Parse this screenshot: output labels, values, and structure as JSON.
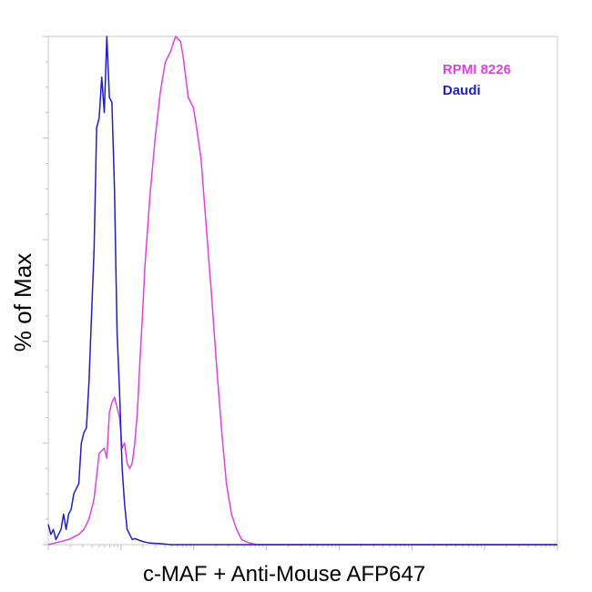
{
  "chart_data": {
    "type": "line",
    "title": "",
    "xlabel": "c-MAF + Anti-Mouse AFP647",
    "ylabel": "% of Max",
    "xlim": [
      0,
      1
    ],
    "ylim": [
      0,
      1
    ],
    "grid": false,
    "legend_position": "top-right",
    "series": [
      {
        "name": "RPMI 8226",
        "color": "#e040e0",
        "x": [
          0.0,
          0.02,
          0.04,
          0.06,
          0.07,
          0.08,
          0.09,
          0.1,
          0.11,
          0.115,
          0.12,
          0.125,
          0.13,
          0.135,
          0.14,
          0.145,
          0.15,
          0.155,
          0.16,
          0.165,
          0.17,
          0.175,
          0.18,
          0.185,
          0.19,
          0.2,
          0.21,
          0.22,
          0.23,
          0.24,
          0.25,
          0.26,
          0.265,
          0.27,
          0.275,
          0.28,
          0.285,
          0.29,
          0.3,
          0.31,
          0.32,
          0.33,
          0.34,
          0.35,
          0.36,
          0.37,
          0.38,
          0.39,
          0.4,
          0.41,
          0.42,
          0.43,
          1.0
        ],
        "y": [
          0.0,
          0.005,
          0.01,
          0.02,
          0.03,
          0.05,
          0.09,
          0.18,
          0.19,
          0.17,
          0.26,
          0.28,
          0.29,
          0.27,
          0.25,
          0.19,
          0.2,
          0.16,
          0.15,
          0.16,
          0.2,
          0.26,
          0.36,
          0.45,
          0.55,
          0.69,
          0.8,
          0.89,
          0.95,
          0.97,
          1.0,
          0.99,
          0.96,
          0.92,
          0.88,
          0.87,
          0.86,
          0.83,
          0.76,
          0.63,
          0.5,
          0.36,
          0.23,
          0.12,
          0.06,
          0.03,
          0.01,
          0.005,
          0.002,
          0.0,
          0.0,
          0.0,
          0.0
        ]
      },
      {
        "name": "Daudi",
        "color": "#1e1ec8",
        "x": [
          0.0,
          0.005,
          0.01,
          0.015,
          0.02,
          0.025,
          0.03,
          0.035,
          0.04,
          0.045,
          0.05,
          0.055,
          0.06,
          0.065,
          0.07,
          0.075,
          0.08,
          0.085,
          0.09,
          0.095,
          0.1,
          0.105,
          0.11,
          0.115,
          0.12,
          0.125,
          0.13,
          0.135,
          0.14,
          0.145,
          0.15,
          0.155,
          0.16,
          0.165,
          0.17,
          0.18,
          0.19,
          0.2,
          0.22,
          0.24,
          0.26,
          0.28,
          0.3,
          0.35,
          0.4,
          1.0
        ],
        "y": [
          0.04,
          0.02,
          0.03,
          0.01,
          0.02,
          0.03,
          0.06,
          0.03,
          0.06,
          0.07,
          0.1,
          0.11,
          0.12,
          0.2,
          0.22,
          0.23,
          0.32,
          0.45,
          0.58,
          0.82,
          0.84,
          0.92,
          0.85,
          1.0,
          0.88,
          0.87,
          0.7,
          0.42,
          0.3,
          0.15,
          0.08,
          0.03,
          0.02,
          0.01,
          0.012,
          0.008,
          0.005,
          0.003,
          0.002,
          0.0,
          0.0,
          0.0,
          0.0,
          0.0,
          0.0,
          0.0
        ]
      }
    ]
  }
}
